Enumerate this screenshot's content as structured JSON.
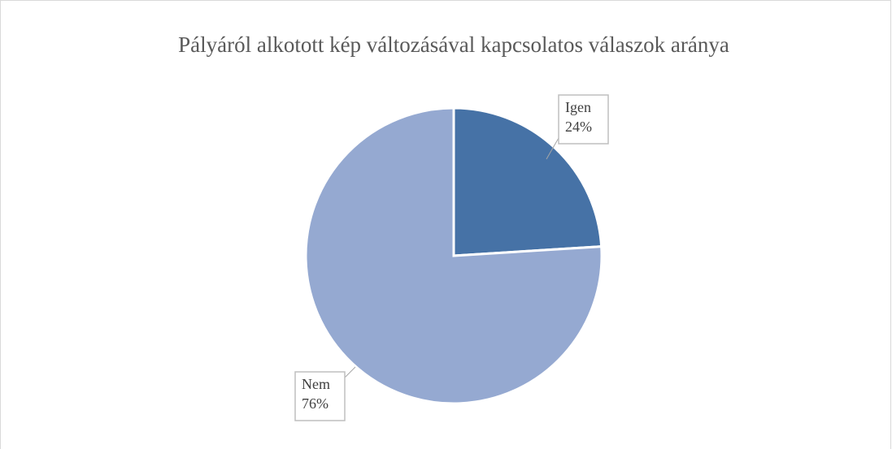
{
  "chart_data": {
    "type": "pie",
    "title": "Pályáról alkotott kép változásával kapcsolatos válaszok aránya",
    "categories": [
      "Igen",
      "Nem"
    ],
    "values": [
      24,
      76
    ],
    "value_labels": [
      "24%",
      "76%"
    ],
    "colors": [
      "#4672a6",
      "#95a9d1"
    ]
  }
}
